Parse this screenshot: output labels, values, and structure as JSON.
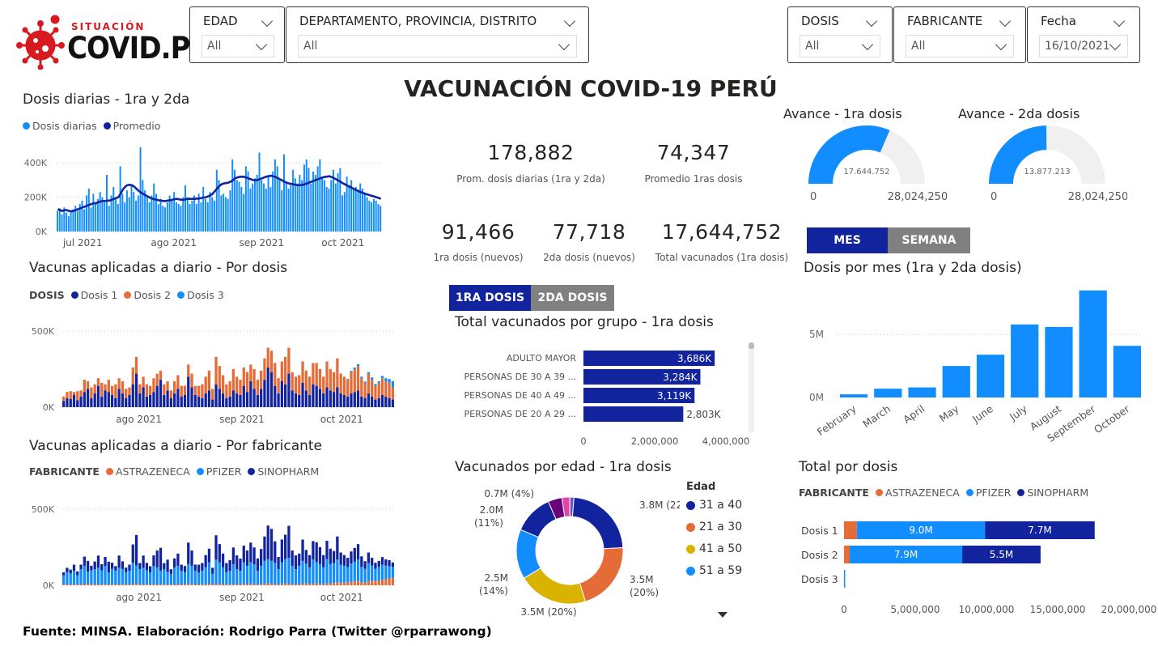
{
  "brand": {
    "small": "SITUACIÓN",
    "big": "COVID.PE"
  },
  "title": "VACUNACIÓN COVID-19 PERÚ",
  "filters": {
    "edad": {
      "label": "EDAD",
      "value": "All"
    },
    "ubicacion": {
      "label": "DEPARTAMENTO, PROVINCIA, DISTRITO",
      "value": "All"
    },
    "dosis": {
      "label": "DOSIS",
      "value": "All"
    },
    "fabricante": {
      "label": "FABRICANTE",
      "value": "All"
    },
    "fecha": {
      "label": "Fecha",
      "value": "16/10/2021"
    }
  },
  "kpis": {
    "prom_diarias": {
      "value": "178,882",
      "label": "Prom. dosis diarias (1ra y 2da)"
    },
    "prom_1ras": {
      "value": "74,347",
      "label": "Promedio 1ras dosis"
    },
    "nuevos_1ra": {
      "value": "91,466",
      "label": "1ra dosis (nuevos)"
    },
    "nuevos_2da": {
      "value": "77,718",
      "label": "2da dosis (nuevos)"
    },
    "total_1ra": {
      "value": "17,644,752",
      "label": "Total vacunados (1ra dosis)"
    }
  },
  "gauges": [
    {
      "title": "Avance - 1ra dosis",
      "value": 17644752,
      "value_label": "17.644.752",
      "min_label": "0",
      "max_label": "28,024,250",
      "max": 28024250
    },
    {
      "title": "Avance - 2da dosis",
      "value": 13877213,
      "value_label": "13.877.213",
      "min_label": "0",
      "max_label": "28,024,250",
      "max": 28024250
    }
  ],
  "toggles": {
    "mes": "MES",
    "semana": "SEMANA",
    "dosis1": "1RA DOSIS",
    "dosis2": "2DA DOSIS"
  },
  "colors": {
    "light_blue": "#118dff",
    "dark_blue": "#12239e",
    "orange": "#e66c37",
    "yellow": "#d9b300",
    "gauge_bg": "#f0f0f0",
    "toggle_gray": "#808080"
  },
  "footer": "Fuente: MINSA. Elaboración: Rodrigo Parra (Twitter @rparrawong)",
  "chart_data": [
    {
      "id": "daily",
      "type": "bar",
      "title": "Dosis diarias - 1ra y 2da",
      "legend": [
        "Dosis diarias",
        "Promedio"
      ],
      "x_labels": [
        "jul 2021",
        "ago 2021",
        "sep 2021",
        "oct 2021"
      ],
      "y_ticks": [
        "0K",
        "200K",
        "400K"
      ],
      "ylim": [
        0,
        500000
      ],
      "values": [
        120000,
        135000,
        100000,
        140000,
        110000,
        90000,
        125000,
        130000,
        150000,
        120000,
        160000,
        180000,
        130000,
        210000,
        250000,
        140000,
        220000,
        160000,
        190000,
        230000,
        200000,
        170000,
        330000,
        150000,
        210000,
        260000,
        190000,
        160000,
        380000,
        220000,
        170000,
        240000,
        200000,
        270000,
        230000,
        180000,
        210000,
        490000,
        300000,
        240000,
        200000,
        170000,
        210000,
        280000,
        220000,
        160000,
        190000,
        150000,
        140000,
        170000,
        210000,
        180000,
        230000,
        170000,
        160000,
        150000,
        200000,
        270000,
        200000,
        160000,
        180000,
        210000,
        160000,
        220000,
        170000,
        260000,
        190000,
        170000,
        230000,
        200000,
        180000,
        360000,
        300000,
        210000,
        220000,
        200000,
        190000,
        240000,
        420000,
        360000,
        300000,
        290000,
        260000,
        220000,
        380000,
        350000,
        250000,
        280000,
        310000,
        330000,
        460000,
        300000,
        280000,
        250000,
        330000,
        260000,
        350000,
        420000,
        380000,
        300000,
        240000,
        450000,
        290000,
        250000,
        270000,
        360000,
        310000,
        280000,
        330000,
        300000,
        390000,
        420000,
        370000,
        280000,
        350000,
        330000,
        380000,
        420000,
        310000,
        300000,
        260000,
        250000,
        300000,
        360000,
        280000,
        340000,
        370000,
        210000,
        230000,
        320000,
        270000,
        300000,
        250000,
        260000,
        240000,
        280000,
        250000,
        220000,
        200000,
        180000,
        170000,
        190000,
        180000,
        160000,
        150000
      ],
      "average": [
        130000,
        125000,
        120000,
        125000,
        125000,
        120000,
        118000,
        120000,
        125000,
        130000,
        135000,
        140000,
        145000,
        150000,
        155000,
        160000,
        165000,
        165000,
        170000,
        175000,
        178000,
        178000,
        180000,
        180000,
        185000,
        190000,
        195000,
        200000,
        220000,
        245000,
        260000,
        270000,
        272000,
        270000,
        262000,
        250000,
        238000,
        228000,
        220000,
        212000,
        205000,
        198000,
        192000,
        188000,
        185000,
        182000,
        180000,
        178000,
        178000,
        180000,
        182000,
        185000,
        188000,
        190000,
        188000,
        185000,
        185000,
        188000,
        190000,
        190000,
        190000,
        190000,
        192000,
        192000,
        195000,
        198000,
        200000,
        205000,
        210000,
        220000,
        235000,
        250000,
        265000,
        275000,
        280000,
        282000,
        285000,
        290000,
        298000,
        310000,
        315000,
        318000,
        320000,
        318000,
        315000,
        310000,
        305000,
        300000,
        298000,
        300000,
        305000,
        310000,
        315000,
        320000,
        322000,
        325000,
        322000,
        318000,
        312000,
        305000,
        298000,
        290000,
        285000,
        280000,
        278000,
        275000,
        272000,
        270000,
        270000,
        272000,
        275000,
        280000,
        285000,
        290000,
        295000,
        300000,
        305000,
        310000,
        315000,
        318000,
        320000,
        322000,
        318000,
        312000,
        305000,
        298000,
        290000,
        282000,
        275000,
        268000,
        262000,
        255000,
        248000,
        242000,
        236000,
        230000,
        225000,
        220000,
        216000,
        212000,
        208000,
        204000,
        200000,
        196000,
        190000
      ]
    },
    {
      "id": "por_dosis",
      "type": "bar",
      "stacked": true,
      "title": "Vacunas aplicadas a diario - Por dosis",
      "legend_title": "DOSIS",
      "series_names": [
        "Dosis 1",
        "Dosis 2",
        "Dosis 3"
      ],
      "x_labels": [
        "ago 2021",
        "sep 2021",
        "oct 2021"
      ],
      "y_ticks": [
        "0K",
        "500K"
      ],
      "ylim": [
        0,
        600000
      ],
      "dosis1": [
        40000,
        60000,
        55000,
        80000,
        45000,
        70000,
        100000,
        120000,
        60000,
        90000,
        140000,
        70000,
        110000,
        100000,
        80000,
        60000,
        120000,
        90000,
        60000,
        80000,
        150000,
        220000,
        90000,
        130000,
        70000,
        80000,
        100000,
        140000,
        180000,
        80000,
        110000,
        60000,
        90000,
        120000,
        70000,
        80000,
        200000,
        130000,
        80000,
        70000,
        60000,
        90000,
        110000,
        50000,
        150000,
        120000,
        90000,
        60000,
        70000,
        110000,
        90000,
        80000,
        140000,
        100000,
        170000,
        120000,
        80000,
        120000,
        180000,
        260000,
        230000,
        140000,
        90000,
        170000,
        150000,
        220000,
        110000,
        90000,
        80000,
        160000,
        110000,
        80000,
        150000,
        140000,
        120000,
        90000,
        130000,
        110000,
        100000,
        130000,
        90000,
        80000,
        70000,
        90000,
        100000,
        110000,
        70000,
        60000,
        90000,
        70000,
        50000,
        60000,
        80000,
        70000,
        60000,
        50000
      ],
      "dosis2": [
        30000,
        40000,
        50000,
        20000,
        60000,
        40000,
        80000,
        50000,
        70000,
        60000,
        50000,
        90000,
        40000,
        80000,
        60000,
        90000,
        70000,
        80000,
        60000,
        50000,
        110000,
        110000,
        60000,
        70000,
        80000,
        60000,
        90000,
        80000,
        60000,
        70000,
        60000,
        50000,
        80000,
        90000,
        70000,
        60000,
        80000,
        90000,
        60000,
        70000,
        90000,
        110000,
        130000,
        70000,
        180000,
        150000,
        120000,
        90000,
        100000,
        140000,
        110000,
        100000,
        120000,
        130000,
        110000,
        130000,
        100000,
        120000,
        140000,
        130000,
        140000,
        150000,
        100000,
        130000,
        180000,
        170000,
        120000,
        110000,
        130000,
        140000,
        130000,
        120000,
        140000,
        150000,
        130000,
        110000,
        170000,
        140000,
        130000,
        190000,
        130000,
        120000,
        110000,
        140000,
        150000,
        160000,
        120000,
        100000,
        130000,
        110000,
        90000,
        100000,
        110000,
        100000,
        100000,
        80000
      ],
      "dosis3": [
        0,
        0,
        0,
        0,
        0,
        0,
        0,
        0,
        0,
        0,
        0,
        0,
        0,
        0,
        0,
        0,
        0,
        0,
        0,
        0,
        0,
        0,
        0,
        0,
        0,
        0,
        0,
        0,
        0,
        0,
        0,
        0,
        0,
        0,
        0,
        0,
        0,
        0,
        0,
        0,
        0,
        0,
        0,
        0,
        0,
        0,
        0,
        0,
        0,
        0,
        0,
        0,
        0,
        0,
        0,
        0,
        0,
        0,
        0,
        0,
        0,
        0,
        0,
        0,
        0,
        0,
        0,
        0,
        0,
        0,
        0,
        0,
        0,
        0,
        0,
        0,
        0,
        0,
        0,
        0,
        0,
        0,
        5000,
        8000,
        10000,
        12000,
        10000,
        8000,
        10000,
        15000,
        12000,
        10000,
        15000,
        20000,
        25000,
        40000
      ]
    },
    {
      "id": "por_fabricante",
      "type": "bar",
      "stacked": true,
      "title": "Vacunas aplicadas a diario - Por fabricante",
      "legend_title": "FABRICANTE",
      "series_names": [
        "ASTRAZENECA",
        "PFIZER",
        "SINOPHARM"
      ],
      "x_labels": [
        "ago 2021",
        "sep 2021",
        "oct 2021"
      ],
      "y_ticks": [
        "0K",
        "500K"
      ],
      "ylim": [
        0,
        600000
      ],
      "astrazeneca": [
        5000,
        5000,
        8000,
        5000,
        6000,
        5000,
        8000,
        10000,
        8000,
        6000,
        5000,
        8000,
        6000,
        5000,
        8000,
        6000,
        5000,
        7000,
        6000,
        5000,
        8000,
        10000,
        6000,
        5000,
        7000,
        5000,
        6000,
        8000,
        6000,
        5000,
        8000,
        5000,
        6000,
        8000,
        5000,
        6000,
        10000,
        8000,
        6000,
        5000,
        6000,
        8000,
        10000,
        5000,
        8000,
        10000,
        8000,
        6000,
        5000,
        8000,
        6000,
        5000,
        10000,
        8000,
        10000,
        8000,
        6000,
        8000,
        10000,
        12000,
        10000,
        8000,
        6000,
        10000,
        12000,
        10000,
        8000,
        6000,
        8000,
        10000,
        12000,
        8000,
        10000,
        12000,
        10000,
        8000,
        12000,
        10000,
        15000,
        20000,
        15000,
        18000,
        20000,
        22000,
        25000,
        30000,
        20000,
        18000,
        25000,
        30000,
        28000,
        30000,
        35000,
        40000,
        45000,
        50000
      ],
      "pfizer": [
        60000,
        80000,
        70000,
        90000,
        60000,
        100000,
        120000,
        80000,
        90000,
        100000,
        110000,
        90000,
        120000,
        80000,
        100000,
        90000,
        110000,
        100000,
        80000,
        90000,
        140000,
        120000,
        100000,
        110000,
        90000,
        80000,
        120000,
        110000,
        90000,
        100000,
        80000,
        70000,
        110000,
        120000,
        90000,
        80000,
        130000,
        120000,
        90000,
        80000,
        90000,
        110000,
        140000,
        70000,
        160000,
        140000,
        110000,
        80000,
        90000,
        130000,
        100000,
        90000,
        140000,
        120000,
        140000,
        130000,
        90000,
        120000,
        150000,
        160000,
        150000,
        140000,
        100000,
        140000,
        160000,
        170000,
        120000,
        100000,
        120000,
        150000,
        130000,
        110000,
        160000,
        140000,
        130000,
        110000,
        160000,
        130000,
        130000,
        150000,
        120000,
        110000,
        100000,
        120000,
        130000,
        140000,
        100000,
        90000,
        120000,
        100000,
        80000,
        90000,
        100000,
        90000,
        80000,
        70000
      ],
      "sinopharm": [
        20000,
        30000,
        25000,
        40000,
        25000,
        30000,
        60000,
        70000,
        30000,
        50000,
        80000,
        40000,
        60000,
        70000,
        40000,
        30000,
        80000,
        50000,
        30000,
        40000,
        120000,
        200000,
        40000,
        80000,
        50000,
        40000,
        70000,
        110000,
        150000,
        40000,
        80000,
        30000,
        60000,
        80000,
        40000,
        40000,
        140000,
        100000,
        40000,
        50000,
        50000,
        80000,
        90000,
        40000,
        160000,
        120000,
        90000,
        60000,
        70000,
        110000,
        90000,
        80000,
        110000,
        100000,
        130000,
        110000,
        80000,
        110000,
        160000,
        220000,
        210000,
        140000,
        80000,
        150000,
        160000,
        210000,
        100000,
        90000,
        80000,
        140000,
        90000,
        80000,
        120000,
        130000,
        110000,
        80000,
        120000,
        100000,
        80000,
        150000,
        80000,
        70000,
        60000,
        80000,
        90000,
        100000,
        70000,
        50000,
        70000,
        50000,
        40000,
        40000,
        50000,
        40000,
        40000,
        30000
      ]
    },
    {
      "id": "grupo",
      "type": "bar",
      "orientation": "horizontal",
      "title": "Total vacunados por grupo - 1ra dosis",
      "categories": [
        "ADULTO MAYOR",
        "PERSONAS DE 30 A 39 ...",
        "PERSONAS DE 40 A 49 ...",
        "PERSONAS DE 20 A 29 ..."
      ],
      "values": [
        3686000,
        3284000,
        3119000,
        2803000
      ],
      "data_labels": [
        "3,686K",
        "3,284K",
        "3,119K",
        "2,803K"
      ],
      "x_ticks": [
        "0",
        "2,000,000",
        "4,000,000"
      ],
      "xlim": [
        0,
        4000000
      ]
    },
    {
      "id": "edad",
      "type": "pie",
      "title": "Vacunados por edad - 1ra dosis",
      "legend_title": "Edad",
      "legend": [
        "31 a 40",
        "21 a 30",
        "41 a 50",
        "51 a 59"
      ],
      "values": [
        3.8,
        3.5,
        3.5,
        2.5,
        2.0,
        0.7,
        0.4,
        0.2
      ],
      "labels": [
        "3.8M (22%)",
        "3.5M (20%)",
        "3.5M (20%)",
        "2.5M (14%)",
        "2.0M (11%)",
        "0.7M (4%)",
        "",
        ""
      ],
      "colors": [
        "#12239e",
        "#e66c37",
        "#d9b300",
        "#118dff",
        "#12239e",
        "#6b007b",
        "#e044a7",
        "#744ec2"
      ]
    },
    {
      "id": "mes",
      "type": "bar",
      "title": "Dosis por mes (1ra y 2da dosis)",
      "categories": [
        "February",
        "March",
        "April",
        "May",
        "June",
        "July",
        "August",
        "September",
        "October"
      ],
      "values": [
        250000,
        700000,
        800000,
        2500000,
        3400000,
        5800000,
        5600000,
        8500000,
        4100000
      ],
      "y_ticks": [
        "0M",
        "5M"
      ],
      "ylim": [
        0,
        9000000
      ]
    },
    {
      "id": "total_dosis",
      "type": "bar",
      "orientation": "horizontal",
      "stacked": true,
      "title": "Total por dosis",
      "legend_title": "FABRICANTE",
      "series_names": [
        "ASTRAZENECA",
        "PFIZER",
        "SINOPHARM"
      ],
      "categories": [
        "Dosis 1",
        "Dosis 2",
        "Dosis 3"
      ],
      "astrazeneca": [
        900000,
        400000,
        0
      ],
      "pfizer": [
        9000000,
        7900000,
        80000
      ],
      "sinopharm": [
        7700000,
        5500000,
        0
      ],
      "data_labels": {
        "pfizer": [
          "9.0M",
          "7.9M",
          ""
        ],
        "sinopharm": [
          "7.7M",
          "5.5M",
          ""
        ]
      },
      "x_ticks": [
        "0",
        "5,000,000",
        "10,000,000",
        "15,000,000",
        "20,000,000"
      ],
      "xlim": [
        0,
        20000000
      ]
    }
  ]
}
